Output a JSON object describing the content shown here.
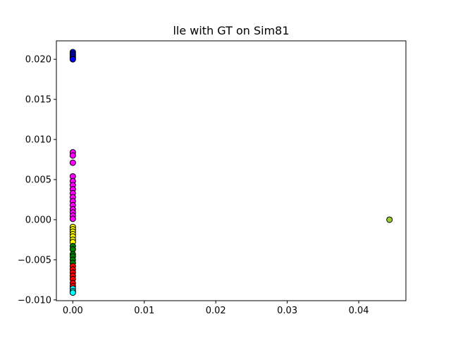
{
  "chart_data": {
    "type": "scatter",
    "title": "lle with GT on Sim81",
    "xlabel": "",
    "ylabel": "",
    "xlim": [
      -0.0023,
      0.0466
    ],
    "ylim": [
      -0.0101,
      0.0223
    ],
    "grid": false,
    "x_ticks": [
      {
        "value": 0.0,
        "label": "0.00"
      },
      {
        "value": 0.01,
        "label": "0.01"
      },
      {
        "value": 0.02,
        "label": "0.02"
      },
      {
        "value": 0.03,
        "label": "0.03"
      },
      {
        "value": 0.04,
        "label": "0.04"
      }
    ],
    "y_ticks": [
      {
        "value": -0.01,
        "label": "−0.010"
      },
      {
        "value": -0.005,
        "label": "−0.005"
      },
      {
        "value": 0.0,
        "label": "0.000"
      },
      {
        "value": 0.005,
        "label": "0.005"
      },
      {
        "value": 0.01,
        "label": "0.010"
      },
      {
        "value": 0.015,
        "label": "0.015"
      },
      {
        "value": 0.02,
        "label": "0.020"
      }
    ],
    "series": [
      {
        "color": "#0000ff",
        "points": [
          [
            0.0,
            0.0209
          ],
          [
            0.0,
            0.0207
          ],
          [
            0.0,
            0.0205
          ],
          [
            0.0,
            0.0203
          ],
          [
            0.0,
            0.0201
          ],
          [
            0.0,
            0.02
          ]
        ]
      },
      {
        "color": "#ff00ff",
        "points": [
          [
            0.0,
            0.0084
          ],
          [
            0.0,
            0.008
          ],
          [
            0.0,
            0.0071
          ],
          [
            0.0,
            0.0054
          ],
          [
            0.0,
            0.0048
          ],
          [
            0.0,
            0.0043
          ],
          [
            0.0,
            0.0038
          ],
          [
            0.0,
            0.0033
          ],
          [
            0.0,
            0.0028
          ],
          [
            0.0,
            0.0023
          ],
          [
            0.0,
            0.0018
          ],
          [
            0.0,
            0.0013
          ],
          [
            0.0,
            0.0009
          ],
          [
            0.0,
            0.0005
          ],
          [
            0.0,
            0.0001
          ]
        ]
      },
      {
        "color": "#ffff00",
        "points": [
          [
            0.0,
            -0.0009
          ],
          [
            0.0,
            -0.0012
          ],
          [
            0.0,
            -0.0015
          ],
          [
            0.0,
            -0.0018
          ],
          [
            0.0,
            -0.0021
          ],
          [
            0.0,
            -0.0025
          ],
          [
            0.0,
            -0.0028
          ]
        ]
      },
      {
        "color": "#008000",
        "points": [
          [
            0.0,
            -0.0033
          ],
          [
            0.0,
            -0.0037
          ],
          [
            0.0,
            -0.0043
          ],
          [
            0.0,
            -0.0046
          ],
          [
            0.0,
            -0.005
          ],
          [
            0.0,
            -0.0054
          ]
        ]
      },
      {
        "color": "#ff0000",
        "points": [
          [
            0.0,
            -0.0058
          ],
          [
            0.0,
            -0.0062
          ],
          [
            0.0,
            -0.0066
          ],
          [
            0.0,
            -0.007
          ],
          [
            0.0,
            -0.0074
          ],
          [
            0.0,
            -0.0079
          ],
          [
            0.0,
            -0.0083
          ]
        ]
      },
      {
        "color": "#00ffff",
        "points": [
          [
            0.0,
            -0.0086
          ],
          [
            0.0,
            -0.0089
          ],
          [
            0.0,
            -0.0091
          ]
        ]
      },
      {
        "color": "#9acd32",
        "points": [
          [
            0.0443,
            0.0
          ]
        ]
      }
    ]
  }
}
